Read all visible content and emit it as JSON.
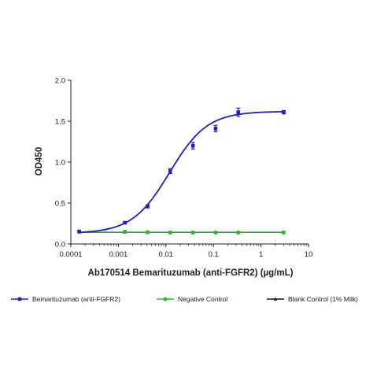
{
  "chart_data": {
    "type": "line",
    "xlabel": "Ab170514 Bemarituzumab (anti-FGFR2) (µg/mL)",
    "ylabel": "OD450",
    "x_scale": "log",
    "xlim": [
      0.0001,
      10
    ],
    "ylim": [
      0,
      2.0
    ],
    "x_ticks": [
      0.0001,
      0.001,
      0.01,
      0.1,
      1,
      10
    ],
    "x_tick_labels": [
      "0.0001",
      "0.001",
      "0.01",
      "0.1",
      "1",
      "10"
    ],
    "y_ticks": [
      0,
      0.5,
      1.0,
      1.5,
      2.0
    ],
    "y_tick_labels": [
      "0.0",
      "0.5",
      "1.0",
      "1.5",
      "2.0"
    ],
    "grid": false,
    "legend_position": "bottom",
    "series": [
      {
        "name": "Bemarituzumab (anti-FGFR2)",
        "color": "#1f22b4",
        "marker": "square",
        "x": [
          0.00015,
          0.00137,
          0.00412,
          0.0123,
          0.037,
          0.111,
          0.333,
          3.0
        ],
        "y": [
          0.15,
          0.26,
          0.46,
          0.89,
          1.2,
          1.41,
          1.61,
          1.61
        ],
        "err": [
          0,
          0.01,
          0.02,
          0.03,
          0.04,
          0.04,
          0.05,
          0.02
        ]
      },
      {
        "name": "Negative Control",
        "color": "#2fb82f",
        "marker": "square",
        "x": [
          0.00015,
          0.00137,
          0.00412,
          0.0123,
          0.037,
          0.111,
          0.333,
          3.0
        ],
        "y": [
          0.155,
          0.15,
          0.145,
          0.14,
          0.14,
          0.14,
          0.14,
          0.14
        ],
        "err": [
          0,
          0,
          0,
          0,
          0,
          0,
          0,
          0
        ]
      },
      {
        "name": "Blank Control (1% Milk)",
        "color": "#111111",
        "marker": "triangle",
        "x": [
          0.00015,
          0.00137,
          0.00412,
          0.0123,
          0.037,
          0.111,
          0.333,
          3.0
        ],
        "y": [
          0.15,
          0.145,
          0.14,
          0.14,
          0.14,
          0.14,
          0.14,
          0.14
        ],
        "err": [
          0,
          0,
          0,
          0,
          0,
          0,
          0,
          0
        ]
      }
    ]
  }
}
